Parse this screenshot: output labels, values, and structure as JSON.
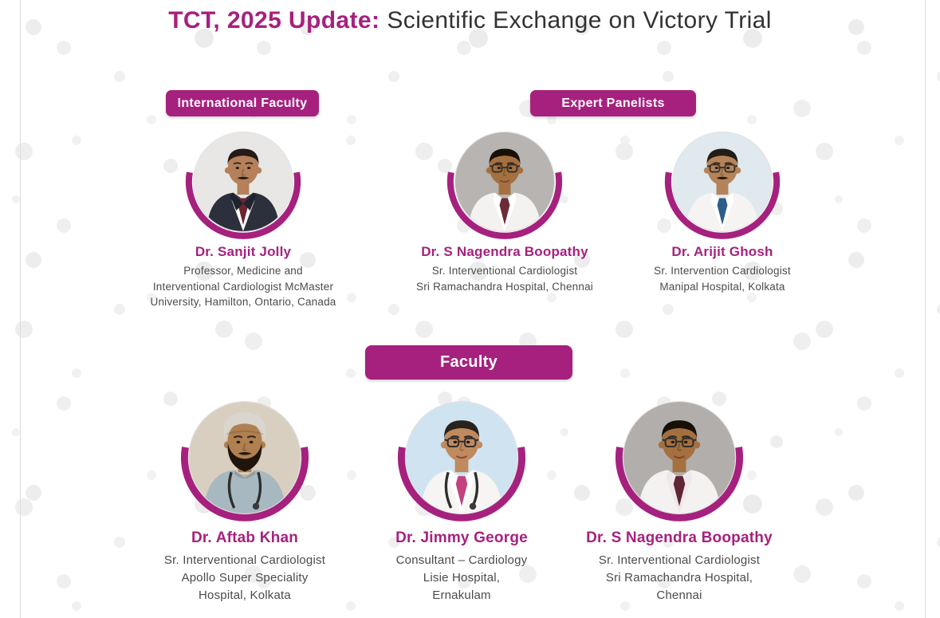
{
  "title": {
    "highlight": "TCT, 2025 Update:",
    "rest": "Scientific Exchange on Victory Trial"
  },
  "badges": {
    "international_faculty": "International Faculty",
    "expert_panelists": "Expert Panelists",
    "faculty": "Faculty"
  },
  "colors": {
    "accent": "#A6217E",
    "badge_text": "#FFFFFF",
    "title_text": "#323234",
    "name_text": "#A6217E",
    "role_text": "#4B4B4D",
    "background": "#FFFFFF",
    "background_dots": "#EDEDED",
    "edge_line": "#DCDCDC"
  },
  "people": [
    {
      "name": "Dr. Sanjit Jolly",
      "role": "Professor, Medicine and\nInterventional Cardiologist McMaster\nUniversity, Hamilton, Ontario, Canada",
      "photo": {
        "bg": "#E9E7E6",
        "skin": "#B5805A",
        "hair": "#221B16",
        "coat": "#2B303C",
        "suit": true,
        "shirt": "#FFFFFF",
        "tie": "#6E2430",
        "glasses": false,
        "mustache": true,
        "beard": null,
        "cap": null,
        "stethoscope": false
      }
    },
    {
      "name": "Dr. S Nagendra Boopathy",
      "role": "Sr. Interventional Cardiologist\nSri Ramachandra Hospital, Chennai",
      "photo": {
        "bg": "#B7B4B2",
        "skin": "#A5703F",
        "hair": "#171007",
        "coat": "#F4F2F0",
        "suit": false,
        "shirt": "#FFFFFF",
        "tie": "#6D2B35",
        "glasses": true,
        "mustache": false,
        "beard": null,
        "cap": null,
        "stethoscope": false
      }
    },
    {
      "name": "Dr. Arijit Ghosh",
      "role": "Sr. Intervention Cardiologist\nManipal Hospital, Kolkata",
      "photo": {
        "bg": "#DFE9EE",
        "skin": "#B5835A",
        "hair": "#241C16",
        "coat": "#F6F4F2",
        "suit": false,
        "shirt": "#FFFFFF",
        "tie": "#2F5D8A",
        "glasses": true,
        "mustache": true,
        "beard": null,
        "cap": null,
        "stethoscope": false
      }
    },
    {
      "name": "Dr. Aftab Khan",
      "role": "Sr. Interventional Cardiologist\nApollo Super Speciality\nHospital, Kolkata",
      "photo": {
        "bg": "#D9CFC0",
        "skin": "#B08050",
        "hair": null,
        "coat": "#A8B8C0",
        "suit": false,
        "shirt": null,
        "tie": null,
        "glasses": false,
        "mustache": true,
        "beard": "#1F150C",
        "cap": "#D8D6CF",
        "stethoscope": true
      }
    },
    {
      "name": "Dr. Jimmy George",
      "role": "Consultant – Cardiology\nLisie Hospital,\nErnakulam",
      "photo": {
        "bg": "#CFE4F0",
        "skin": "#C08A5F",
        "hair": "#2A221C",
        "coat": "#F7F5F3",
        "suit": false,
        "shirt": "#FFFFFF",
        "tie": "#C2427F",
        "glasses": true,
        "mustache": false,
        "beard": null,
        "cap": null,
        "stethoscope": true
      }
    },
    {
      "name": "Dr. S Nagendra Boopathy",
      "role": "Sr. Interventional Cardiologist\nSri Ramachandra Hospital,\nChennai",
      "photo": {
        "bg": "#B2AEAC",
        "skin": "#A5703F",
        "hair": "#171007",
        "coat": "#F4F2F0",
        "suit": false,
        "shirt": "#EFE7EA",
        "tie": "#5F2633",
        "glasses": true,
        "mustache": false,
        "beard": null,
        "cap": null,
        "stethoscope": false
      }
    }
  ]
}
